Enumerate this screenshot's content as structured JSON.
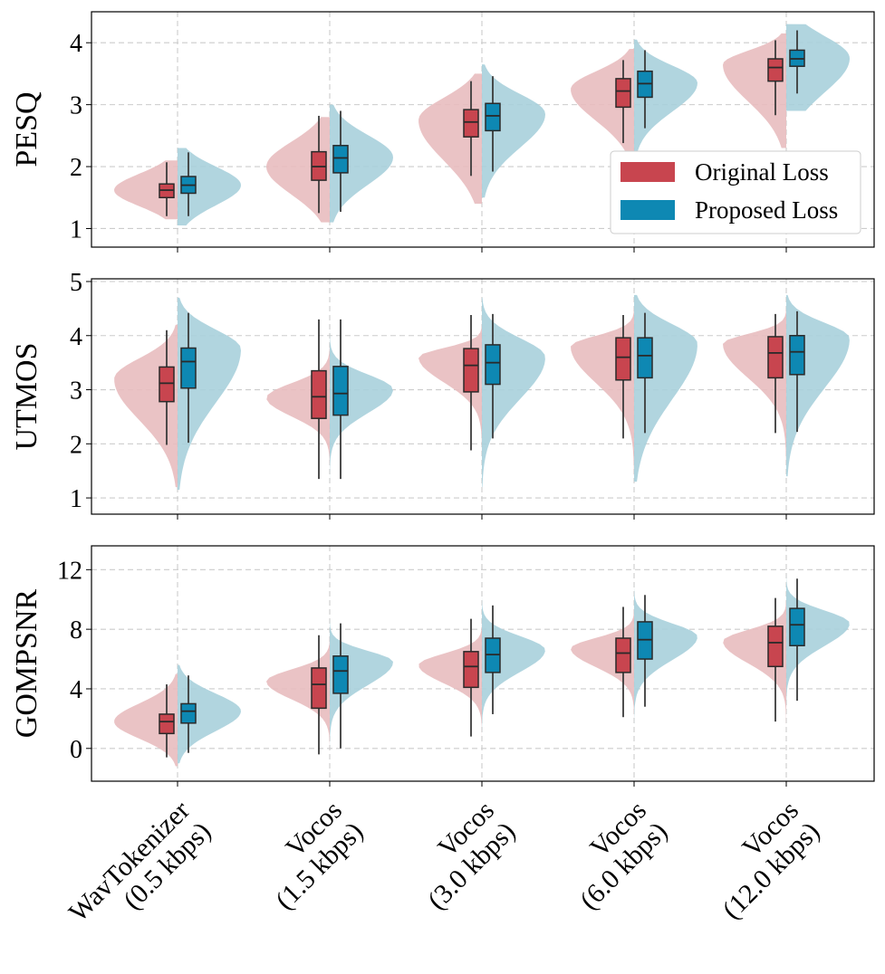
{
  "chart_data": {
    "type": "violin",
    "categories": [
      [
        "WavTokenizer",
        "(0.5 kbps)"
      ],
      [
        "Vocos",
        "(1.5 kbps)"
      ],
      [
        "Vocos",
        "(3.0 kbps)"
      ],
      [
        "Vocos",
        "(6.0 kbps)"
      ],
      [
        "Vocos",
        "(12.0 kbps)"
      ]
    ],
    "legend": {
      "position": "lower-right of top panel",
      "entries": [
        {
          "label": "Original Loss",
          "color": "#c8454f"
        },
        {
          "label": "Proposed Loss",
          "color": "#0e88b3"
        }
      ]
    },
    "colors": {
      "original_box": "#c8454f",
      "proposed_box": "#0e88b3",
      "original_violin": "#e8bcbf",
      "proposed_violin": "#a8d0dc",
      "grid": "#cccccc"
    },
    "panels": [
      {
        "ylabel": "PESQ",
        "ylim": [
          0.7,
          4.5
        ],
        "yticks": [
          1,
          2,
          3,
          4
        ],
        "series": [
          {
            "name": "Original Loss",
            "groups": [
              {
                "q1": 1.5,
                "median": 1.62,
                "q3": 1.72,
                "whislo": 1.2,
                "whishi": 2.07,
                "kde_min": 1.15,
                "kde_max": 2.1,
                "peak": 1.62,
                "width": 0.55
              },
              {
                "q1": 1.78,
                "median": 2.0,
                "q3": 2.24,
                "whislo": 1.25,
                "whishi": 2.82,
                "kde_min": 1.1,
                "kde_max": 2.8,
                "peak": 2.0,
                "width": 0.5
              },
              {
                "q1": 2.48,
                "median": 2.72,
                "q3": 2.92,
                "whislo": 1.85,
                "whishi": 3.38,
                "kde_min": 1.4,
                "kde_max": 3.5,
                "peak": 2.75,
                "width": 0.48
              },
              {
                "q1": 2.96,
                "median": 3.22,
                "q3": 3.42,
                "whislo": 2.38,
                "whishi": 3.72,
                "kde_min": 2.1,
                "kde_max": 3.9,
                "peak": 3.25,
                "width": 0.44
              },
              {
                "q1": 3.38,
                "median": 3.6,
                "q3": 3.74,
                "whislo": 2.83,
                "whishi": 4.04,
                "kde_min": 2.3,
                "kde_max": 4.15,
                "peak": 3.65,
                "width": 0.44
              }
            ]
          },
          {
            "name": "Proposed Loss",
            "groups": [
              {
                "q1": 1.57,
                "median": 1.7,
                "q3": 1.84,
                "whislo": 1.2,
                "whishi": 2.23,
                "kde_min": 1.05,
                "kde_max": 2.3,
                "peak": 1.7,
                "width": 0.5
              },
              {
                "q1": 1.9,
                "median": 2.14,
                "q3": 2.34,
                "whislo": 1.27,
                "whishi": 2.9,
                "kde_min": 1.1,
                "kde_max": 3.0,
                "peak": 2.15,
                "width": 0.42
              },
              {
                "q1": 2.58,
                "median": 2.82,
                "q3": 3.02,
                "whislo": 1.92,
                "whishi": 3.46,
                "kde_min": 1.5,
                "kde_max": 3.65,
                "peak": 2.85,
                "width": 0.4
              },
              {
                "q1": 3.12,
                "median": 3.34,
                "q3": 3.54,
                "whislo": 2.62,
                "whishi": 3.88,
                "kde_min": 2.2,
                "kde_max": 4.05,
                "peak": 3.35,
                "width": 0.4
              },
              {
                "q1": 3.62,
                "median": 3.74,
                "q3": 3.88,
                "whislo": 3.18,
                "whishi": 4.2,
                "kde_min": 2.9,
                "kde_max": 4.3,
                "peak": 3.75,
                "width": 0.65
              }
            ]
          }
        ]
      },
      {
        "ylabel": "UTMOS",
        "ylim": [
          0.7,
          5.05
        ],
        "yticks": [
          1,
          2,
          3,
          4,
          5
        ],
        "series": [
          {
            "name": "Original Loss",
            "groups": [
              {
                "q1": 2.78,
                "median": 3.12,
                "q3": 3.42,
                "whislo": 1.98,
                "whishi": 4.1,
                "kde_min": 1.2,
                "kde_max": 4.2,
                "peak": 3.2,
                "width": 0.38
              },
              {
                "q1": 2.47,
                "median": 2.87,
                "q3": 3.35,
                "whislo": 1.35,
                "whishi": 4.3,
                "kde_min": 0.95,
                "kde_max": 4.35,
                "peak": 2.85,
                "width": 0.18
              },
              {
                "q1": 2.96,
                "median": 3.45,
                "q3": 3.76,
                "whislo": 1.88,
                "whishi": 4.38,
                "kde_min": 1.3,
                "kde_max": 4.45,
                "peak": 3.6,
                "width": 0.2
              },
              {
                "q1": 3.18,
                "median": 3.6,
                "q3": 3.96,
                "whislo": 2.1,
                "whishi": 4.38,
                "kde_min": 1.4,
                "kde_max": 4.5,
                "peak": 3.8,
                "width": 0.28
              },
              {
                "q1": 3.22,
                "median": 3.68,
                "q3": 3.98,
                "whislo": 2.2,
                "whishi": 4.4,
                "kde_min": 1.6,
                "kde_max": 4.5,
                "peak": 3.85,
                "width": 0.28
              }
            ]
          },
          {
            "name": "Proposed Loss",
            "groups": [
              {
                "q1": 3.03,
                "median": 3.52,
                "q3": 3.77,
                "whislo": 2.02,
                "whishi": 4.42,
                "kde_min": 1.15,
                "kde_max": 4.7,
                "peak": 3.75,
                "width": 0.38
              },
              {
                "q1": 2.53,
                "median": 2.93,
                "q3": 3.43,
                "whislo": 1.35,
                "whishi": 4.3,
                "kde_min": 0.85,
                "kde_max": 4.4,
                "peak": 3.0,
                "width": 0.2
              },
              {
                "q1": 3.1,
                "median": 3.5,
                "q3": 3.83,
                "whislo": 2.1,
                "whishi": 4.4,
                "kde_min": 1.2,
                "kde_max": 4.7,
                "peak": 3.6,
                "width": 0.32
              },
              {
                "q1": 3.22,
                "median": 3.63,
                "q3": 3.96,
                "whislo": 2.2,
                "whishi": 4.42,
                "kde_min": 1.3,
                "kde_max": 4.75,
                "peak": 3.85,
                "width": 0.4
              },
              {
                "q1": 3.28,
                "median": 3.7,
                "q3": 4.0,
                "whislo": 2.22,
                "whishi": 4.45,
                "kde_min": 1.4,
                "kde_max": 4.75,
                "peak": 3.95,
                "width": 0.36
              }
            ]
          }
        ]
      },
      {
        "ylabel": "GOMPSNR",
        "ylim": [
          -2.2,
          13.6
        ],
        "yticks": [
          0,
          4,
          8,
          12
        ],
        "series": [
          {
            "name": "Original Loss",
            "groups": [
              {
                "q1": 1.0,
                "median": 1.8,
                "q3": 2.3,
                "whislo": -0.6,
                "whishi": 4.3,
                "kde_min": -1.2,
                "kde_max": 5.0,
                "peak": 1.8,
                "width": 0.38
              },
              {
                "q1": 2.7,
                "median": 4.3,
                "q3": 5.4,
                "whislo": -0.4,
                "whishi": 7.6,
                "kde_min": -1.5,
                "kde_max": 8.5,
                "peak": 4.5,
                "width": 0.2
              },
              {
                "q1": 4.1,
                "median": 5.5,
                "q3": 6.5,
                "whislo": 0.8,
                "whishi": 8.7,
                "kde_min": -0.5,
                "kde_max": 9.4,
                "peak": 5.6,
                "width": 0.2
              },
              {
                "q1": 5.1,
                "median": 6.4,
                "q3": 7.4,
                "whislo": 2.1,
                "whishi": 9.5,
                "kde_min": 0.5,
                "kde_max": 10.3,
                "peak": 6.7,
                "width": 0.2
              },
              {
                "q1": 5.5,
                "median": 7.1,
                "q3": 8.2,
                "whislo": 1.8,
                "whishi": 10.1,
                "kde_min": -0.2,
                "kde_max": 11.0,
                "peak": 7.2,
                "width": 0.2
              }
            ]
          },
          {
            "name": "Proposed Loss",
            "groups": [
              {
                "q1": 1.7,
                "median": 2.5,
                "q3": 3.0,
                "whislo": -0.3,
                "whishi": 4.9,
                "kde_min": -1.0,
                "kde_max": 5.6,
                "peak": 2.5,
                "width": 0.38
              },
              {
                "q1": 3.7,
                "median": 5.2,
                "q3": 6.2,
                "whislo": 0.0,
                "whishi": 8.4,
                "kde_min": -1.2,
                "kde_max": 9.2,
                "peak": 5.8,
                "width": 0.22
              },
              {
                "q1": 5.1,
                "median": 6.3,
                "q3": 7.4,
                "whislo": 2.3,
                "whishi": 9.6,
                "kde_min": 0.5,
                "kde_max": 10.5,
                "peak": 6.6,
                "width": 0.24
              },
              {
                "q1": 6.0,
                "median": 7.3,
                "q3": 8.5,
                "whislo": 2.8,
                "whishi": 10.3,
                "kde_min": 1.0,
                "kde_max": 11.2,
                "peak": 7.5,
                "width": 0.24
              },
              {
                "q1": 6.9,
                "median": 8.3,
                "q3": 9.4,
                "whislo": 3.2,
                "whishi": 11.4,
                "kde_min": 1.5,
                "kde_max": 12.3,
                "peak": 8.4,
                "width": 0.22
              }
            ]
          }
        ]
      }
    ]
  }
}
